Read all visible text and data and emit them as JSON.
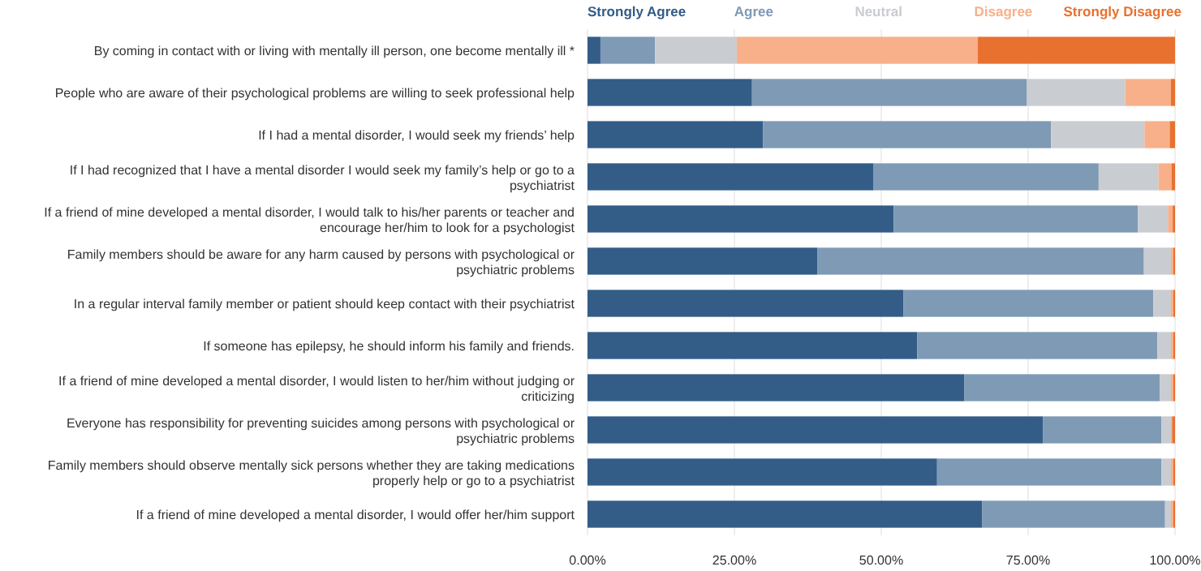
{
  "chart_data": {
    "type": "bar",
    "orientation": "horizontal",
    "stacked": true,
    "categories": [
      "By coming in contact with or living with mentally ill person, one become mentally ill *",
      "People who are aware of their psychological problems are willing to seek professional help",
      "If I had a mental disorder, I would seek my friends’ help",
      "If I had recognized that I have a mental disorder I would seek my family’s help or go to a psychiatrist",
      "If a friend of mine developed a mental disorder, I would talk to his/her parents or teacher and encourage her/him to look for a psychologist",
      "Family members should be aware for any harm caused by persons with psychological or psychiatric problems",
      "In a regular interval family member or patient should keep contact with their psychiatrist",
      "If someone has epilepsy, he should inform his family and friends.",
      "If a friend of mine developed a mental disorder, I would listen to her/him without judging or criticizing",
      "Everyone has responsibility for preventing suicides among persons with psychological or psychiatric problems",
      "Family members should observe mentally sick persons whether they are taking medications properly help or go to a psychiatrist",
      "If a friend of mine developed a mental disorder, I would offer her/him support"
    ],
    "series": [
      {
        "name": "Strongly Agree",
        "color": "#335d87",
        "values": [
          2.2,
          28.0,
          29.9,
          48.7,
          52.1,
          39.1,
          53.8,
          56.1,
          64.1,
          77.5,
          59.5,
          67.2
        ]
      },
      {
        "name": "Agree",
        "color": "#7f9ab5",
        "values": [
          9.3,
          46.8,
          49.0,
          38.3,
          41.6,
          55.6,
          42.5,
          40.9,
          33.3,
          20.2,
          38.2,
          31.1
        ]
      },
      {
        "name": "Neutral",
        "color": "#c9ccd1",
        "values": [
          13.9,
          16.7,
          15.9,
          10.2,
          5.1,
          4.6,
          3.0,
          2.3,
          1.9,
          1.6,
          1.6,
          1.0
        ]
      },
      {
        "name": "Disagree",
        "color": "#f8b08a",
        "values": [
          41.0,
          7.8,
          4.3,
          2.2,
          0.8,
          0.4,
          0.4,
          0.4,
          0.4,
          0.2,
          0.4,
          0.4
        ]
      },
      {
        "name": "Strongly Disagree",
        "color": "#e8712f",
        "values": [
          33.6,
          0.7,
          0.9,
          0.6,
          0.4,
          0.3,
          0.3,
          0.3,
          0.3,
          0.5,
          0.3,
          0.3
        ]
      }
    ],
    "xlim": [
      0,
      100
    ],
    "xticks": [
      {
        "value": 0,
        "label": "0.00%"
      },
      {
        "value": 25,
        "label": "25.00%"
      },
      {
        "value": 50,
        "label": "50.00%"
      },
      {
        "value": 75,
        "label": "75.00%"
      },
      {
        "value": 100,
        "label": "100.00%"
      }
    ],
    "grid": "x",
    "legend": "top"
  }
}
